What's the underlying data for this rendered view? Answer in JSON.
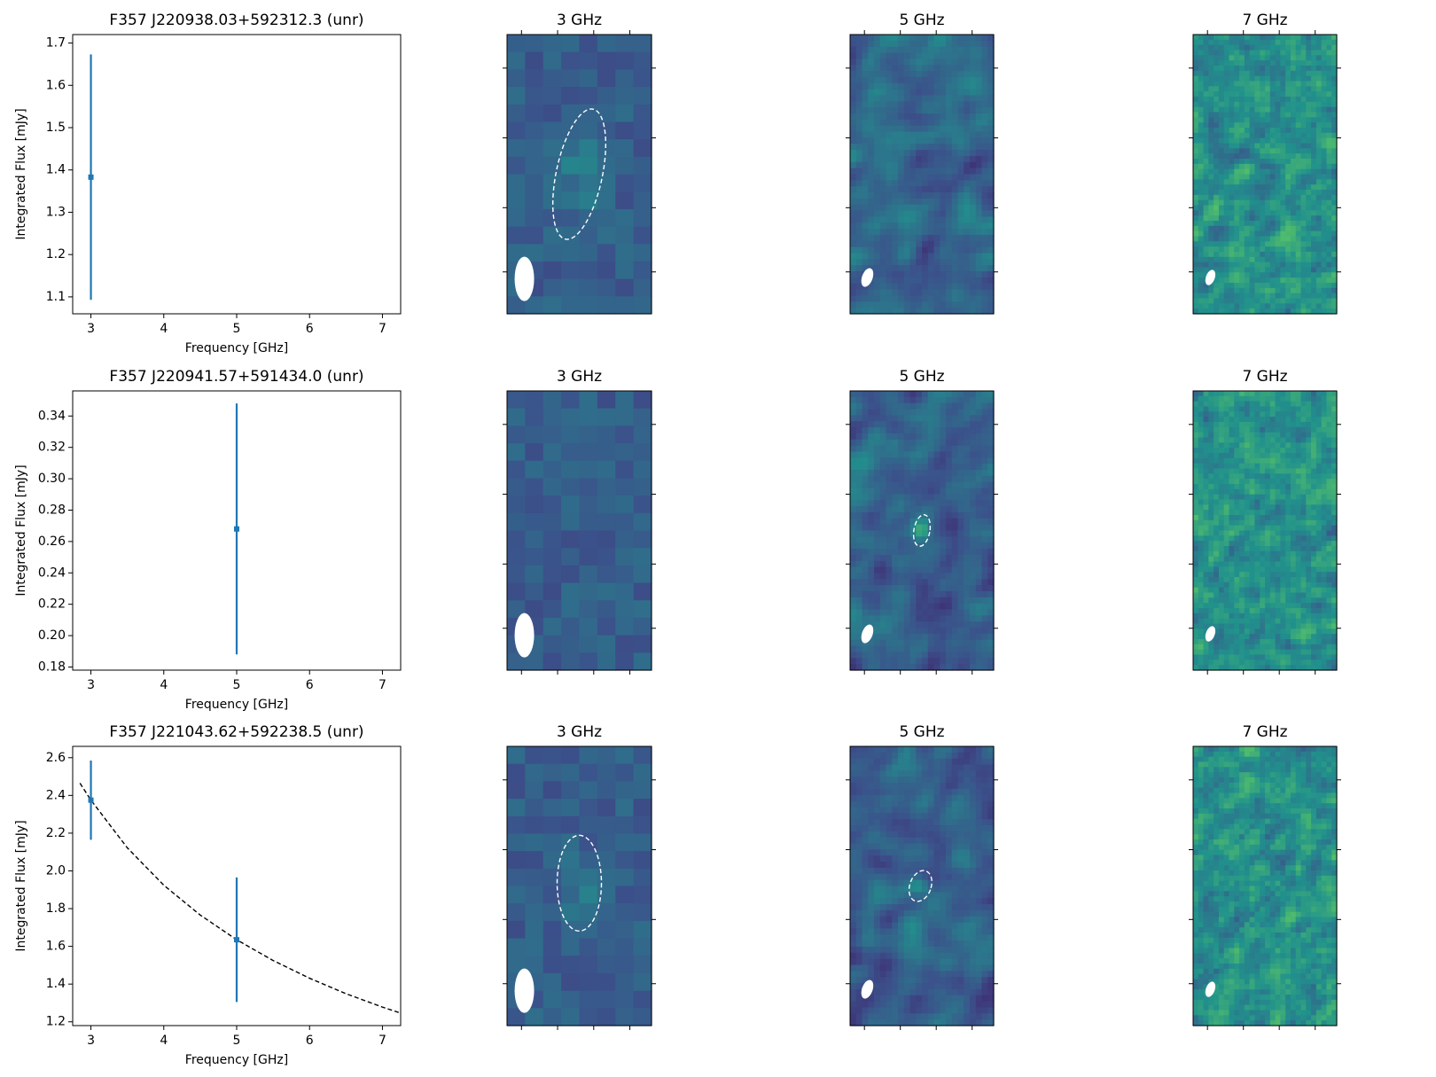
{
  "chart_data": [
    {
      "type": "errorbar",
      "title": "F357 J220938.03+592312.3 (unr)",
      "x_label": "Frequency [GHz]",
      "y_label": "Integrated Flux [mJy]",
      "xlim": [
        2.75,
        7.25
      ],
      "xticks": [
        3,
        4,
        5,
        6,
        7
      ],
      "ylim": [
        1.06,
        1.72
      ],
      "yticks": [
        1.1,
        1.2,
        1.3,
        1.4,
        1.5,
        1.6,
        1.7
      ],
      "series": [
        {
          "color": "#1f77b4",
          "x": [
            3
          ],
          "values": [
            1.383
          ],
          "errors": [
            0.29
          ]
        }
      ]
    },
    {
      "type": "image",
      "title": "3 GHz"
    },
    {
      "type": "image",
      "title": "5 GHz"
    },
    {
      "type": "image",
      "title": "7 GHz"
    },
    {
      "type": "errorbar",
      "title": "F357 J220941.57+591434.0 (unr)",
      "x_label": "Frequency [GHz]",
      "y_label": "Integrated Flux [mJy]",
      "xlim": [
        2.75,
        7.25
      ],
      "xticks": [
        3,
        4,
        5,
        6,
        7
      ],
      "ylim": [
        0.178,
        0.356
      ],
      "yticks": [
        0.18,
        {
          "value": 0.2,
          "label": "0.20"
        },
        0.22,
        0.24,
        0.26,
        0.28,
        {
          "value": 0.3,
          "label": "0.30"
        },
        0.32,
        0.34
      ],
      "series": [
        {
          "color": "#1f77b4",
          "x": [
            5
          ],
          "values": [
            0.268
          ],
          "errors": [
            0.08
          ]
        }
      ]
    },
    {
      "type": "image",
      "title": "3 GHz"
    },
    {
      "type": "image",
      "title": "5 GHz"
    },
    {
      "type": "image",
      "title": "7 GHz"
    },
    {
      "type": "errorbar",
      "title": "F357 J221043.62+592238.5 (unr)",
      "x_label": "Frequency [GHz]",
      "y_label": "Integrated Flux [mJy]",
      "xlim": [
        2.75,
        7.25
      ],
      "xticks": [
        3,
        4,
        5,
        6,
        7
      ],
      "ylim": [
        1.18,
        2.66
      ],
      "yticks": [
        1.2,
        1.4,
        1.6,
        1.8,
        {
          "value": 2,
          "label": "2.0"
        },
        2.2,
        2.4,
        2.6
      ],
      "series": [
        {
          "color": "#1f77b4",
          "x": [
            3,
            5
          ],
          "values": [
            2.375,
            1.635
          ],
          "errors": [
            0.21,
            0.33
          ]
        }
      ],
      "fit": {
        "color": "#000000",
        "x": [
          2.85,
          3,
          3.5,
          4,
          4.5,
          5,
          5.5,
          6,
          6.5,
          7,
          7.25
        ],
        "values": [
          2.465,
          2.375,
          2.122,
          1.924,
          1.766,
          1.635,
          1.525,
          1.431,
          1.349,
          1.278,
          1.246
        ]
      }
    },
    {
      "type": "image",
      "title": "3 GHz"
    },
    {
      "type": "image",
      "title": "5 GHz"
    },
    {
      "type": "image",
      "title": "7 GHz"
    }
  ]
}
